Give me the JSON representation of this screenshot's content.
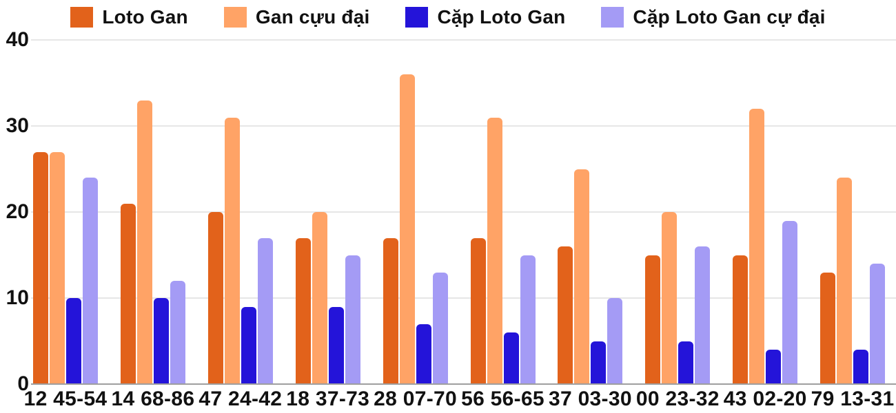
{
  "chart_data": {
    "type": "bar",
    "title": "",
    "xlabel": "",
    "ylabel": "",
    "categories": [
      "12 45-54",
      "14 68-86",
      "47 24-42",
      "18 37-73",
      "28 07-70",
      "56 56-65",
      "37 03-30",
      "00 23-32",
      "43 02-20",
      "79 13-31"
    ],
    "series": [
      {
        "name": "Loto Gan",
        "color": "#E2621B",
        "values": [
          27,
          21,
          20,
          17,
          17,
          17,
          16,
          15,
          15,
          13
        ]
      },
      {
        "name": "Gan cựu đại",
        "color": "#FFA366",
        "values": [
          27,
          33,
          31,
          20,
          36,
          31,
          25,
          20,
          32,
          24
        ]
      },
      {
        "name": "Cặp Loto Gan",
        "color": "#2414D9",
        "values": [
          10,
          10,
          9,
          9,
          7,
          6,
          5,
          5,
          4,
          4
        ]
      },
      {
        "name": "Cặp Loto Gan cự đại",
        "color": "#A49BF5",
        "values": [
          24,
          12,
          17,
          15,
          13,
          15,
          10,
          16,
          19,
          14
        ]
      }
    ],
    "yticks": [
      0,
      10,
      20,
      30,
      40
    ],
    "ylim": [
      0,
      40
    ],
    "grid": true,
    "legend_position": "top",
    "colors": {
      "gridline": "#E6E6E6",
      "baseline": "#9E9E9E",
      "text": "#111111",
      "background": "#FFFFFF"
    }
  }
}
